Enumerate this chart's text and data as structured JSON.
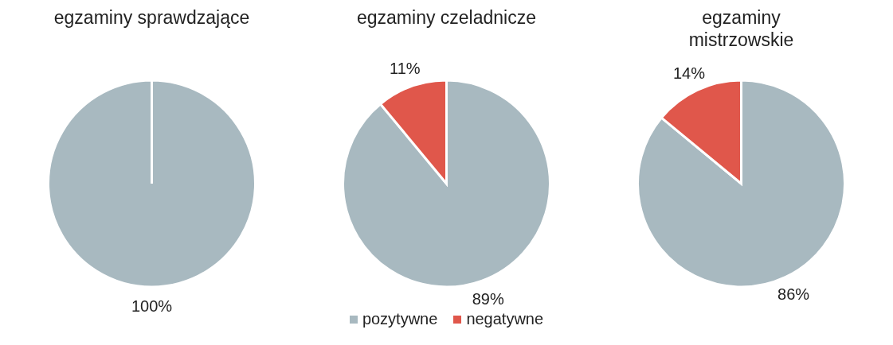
{
  "chart_data": [
    {
      "type": "pie",
      "title": "egzaminy sprawdzające",
      "categories": [
        null,
        null
      ],
      "values": [
        100,
        0
      ],
      "colors": [
        "#a8b9c0",
        "#e0574b"
      ],
      "value_labels": [
        "100%",
        null
      ],
      "legend": false
    },
    {
      "type": "pie",
      "title": "egzaminy czeladnicze",
      "categories": [
        "pozytywne",
        "negatywne"
      ],
      "values": [
        89,
        11
      ],
      "colors": [
        "#a8b9c0",
        "#e0574b"
      ],
      "value_labels": [
        "89%",
        "11%"
      ],
      "legend": "bottom"
    },
    {
      "type": "pie",
      "title": "egzaminy mistrzowskie",
      "categories": [
        null,
        null
      ],
      "values": [
        86,
        14
      ],
      "colors": [
        "#a8b9c0",
        "#e0574b"
      ],
      "value_labels": [
        "86%",
        "14%"
      ],
      "legend": false
    }
  ]
}
